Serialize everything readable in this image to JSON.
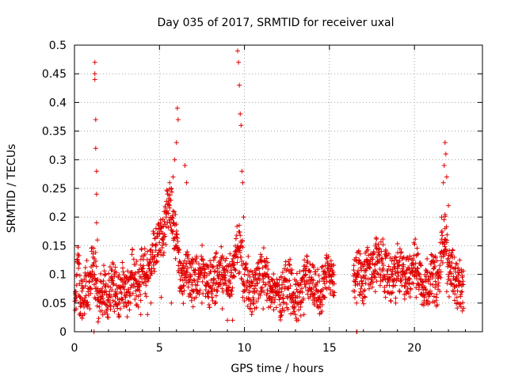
{
  "chart_data": {
    "type": "scatter",
    "title": "Day 035 of 2017, SRMTID for receiver uxal",
    "xlabel": "GPS time / hours",
    "ylabel": "SRMTID / TECUs",
    "xlim": [
      0,
      24
    ],
    "ylim": [
      0,
      0.5
    ],
    "xticks": [
      0,
      5,
      10,
      15,
      20
    ],
    "xtick_labels": [
      "0",
      "5",
      "10",
      "15",
      "20"
    ],
    "yticks": [
      0,
      0.05,
      0.1,
      0.15,
      0.2,
      0.25,
      0.3,
      0.35,
      0.4,
      0.45,
      0.5
    ],
    "ytick_labels": [
      "0",
      "0.05",
      "0.1",
      "0.15",
      "0.2",
      "0.25",
      "0.3",
      "0.35",
      "0.4",
      "0.45",
      "0.5"
    ],
    "grid": true,
    "marker": "plus",
    "color": "#e00000",
    "gap": [
      15.3,
      16.4
    ],
    "series": [
      {
        "name": "SRMTID",
        "x": [
          0.05,
          0.2,
          0.35,
          0.5,
          0.65,
          0.8,
          0.95,
          1.1,
          1.25,
          1.4,
          1.6,
          1.8,
          2.0,
          2.2,
          2.4,
          2.6,
          2.8,
          3.0,
          3.2,
          3.4,
          3.6,
          3.8,
          4.0,
          4.2,
          4.4,
          4.6,
          4.8,
          5.0,
          5.2,
          5.4,
          5.6,
          5.8,
          6.0,
          6.2,
          6.4,
          6.6,
          6.8,
          7.0,
          7.3,
          7.6,
          7.9,
          8.2,
          8.5,
          8.8,
          9.1,
          9.4,
          9.6,
          9.8,
          10.0,
          10.3,
          10.6,
          10.9,
          11.2,
          11.5,
          11.8,
          12.1,
          12.4,
          12.7,
          13.0,
          13.3,
          13.6,
          13.9,
          14.2,
          14.5,
          14.8,
          15.1,
          16.5,
          16.7,
          16.9,
          17.2,
          17.5,
          17.8,
          18.1,
          18.4,
          18.7,
          19.0,
          19.3,
          19.6,
          19.9,
          20.2,
          20.5,
          20.8,
          21.1,
          21.4,
          21.6,
          21.8,
          22.0,
          22.2,
          22.4,
          22.6,
          22.8,
          1.2,
          1.2,
          1.2,
          1.25,
          1.25,
          1.3,
          1.3,
          1.3,
          1.35,
          5.5,
          5.6,
          5.7,
          5.8,
          5.9,
          6.0,
          6.05,
          6.1,
          6.5,
          6.6,
          9.6,
          9.65,
          9.7,
          9.75,
          9.8,
          9.85,
          9.9,
          9.95,
          21.6,
          21.7,
          21.75,
          21.8,
          21.85,
          21.9,
          22.0,
          0.1,
          0.3,
          0.6,
          0.9,
          1.5,
          2.1,
          2.7,
          3.3,
          3.9,
          4.5,
          5.1,
          5.7,
          6.3,
          6.9,
          7.5,
          8.1,
          8.7,
          9.3,
          9.9,
          10.5,
          11.1,
          11.7,
          12.3,
          12.9,
          13.5,
          14.1,
          14.7,
          15.2,
          16.6,
          17.1,
          17.7,
          18.3,
          18.9,
          19.5,
          20.1,
          20.7,
          21.3,
          21.9,
          22.5,
          16.6,
          16.62,
          1.15,
          9.0,
          13.0,
          4.3
        ],
        "y": [
          0.07,
          0.12,
          0.06,
          0.05,
          0.08,
          0.07,
          0.1,
          0.13,
          0.09,
          0.06,
          0.07,
          0.08,
          0.06,
          0.09,
          0.07,
          0.05,
          0.08,
          0.06,
          0.07,
          0.1,
          0.09,
          0.08,
          0.11,
          0.1,
          0.12,
          0.13,
          0.15,
          0.17,
          0.16,
          0.2,
          0.22,
          0.19,
          0.15,
          0.11,
          0.08,
          0.12,
          0.1,
          0.09,
          0.1,
          0.11,
          0.08,
          0.09,
          0.1,
          0.11,
          0.09,
          0.12,
          0.15,
          0.13,
          0.1,
          0.08,
          0.07,
          0.09,
          0.1,
          0.08,
          0.07,
          0.06,
          0.09,
          0.08,
          0.06,
          0.07,
          0.1,
          0.09,
          0.08,
          0.07,
          0.1,
          0.09,
          0.1,
          0.12,
          0.08,
          0.11,
          0.1,
          0.13,
          0.12,
          0.1,
          0.09,
          0.11,
          0.1,
          0.09,
          0.12,
          0.11,
          0.08,
          0.09,
          0.1,
          0.08,
          0.14,
          0.18,
          0.1,
          0.12,
          0.09,
          0.08,
          0.07,
          0.47,
          0.45,
          0.44,
          0.37,
          0.32,
          0.28,
          0.24,
          0.19,
          0.16,
          0.24,
          0.26,
          0.25,
          0.27,
          0.3,
          0.33,
          0.39,
          0.37,
          0.29,
          0.26,
          0.49,
          0.47,
          0.43,
          0.38,
          0.36,
          0.28,
          0.26,
          0.2,
          0.2,
          0.26,
          0.29,
          0.33,
          0.31,
          0.27,
          0.22,
          0.04,
          0.03,
          0.05,
          0.04,
          0.06,
          0.05,
          0.04,
          0.05,
          0.03,
          0.05,
          0.06,
          0.05,
          0.07,
          0.06,
          0.05,
          0.06,
          0.04,
          0.02,
          0.06,
          0.05,
          0.04,
          0.06,
          0.05,
          0.04,
          0.03,
          0.05,
          0.06,
          0.07,
          0.05,
          0.06,
          0.07,
          0.06,
          0.05,
          0.07,
          0.06,
          0.05,
          0.06,
          0.07,
          0.06,
          0.0,
          0.0,
          0.0,
          0.02,
          0.03,
          0.03
        ]
      }
    ]
  }
}
